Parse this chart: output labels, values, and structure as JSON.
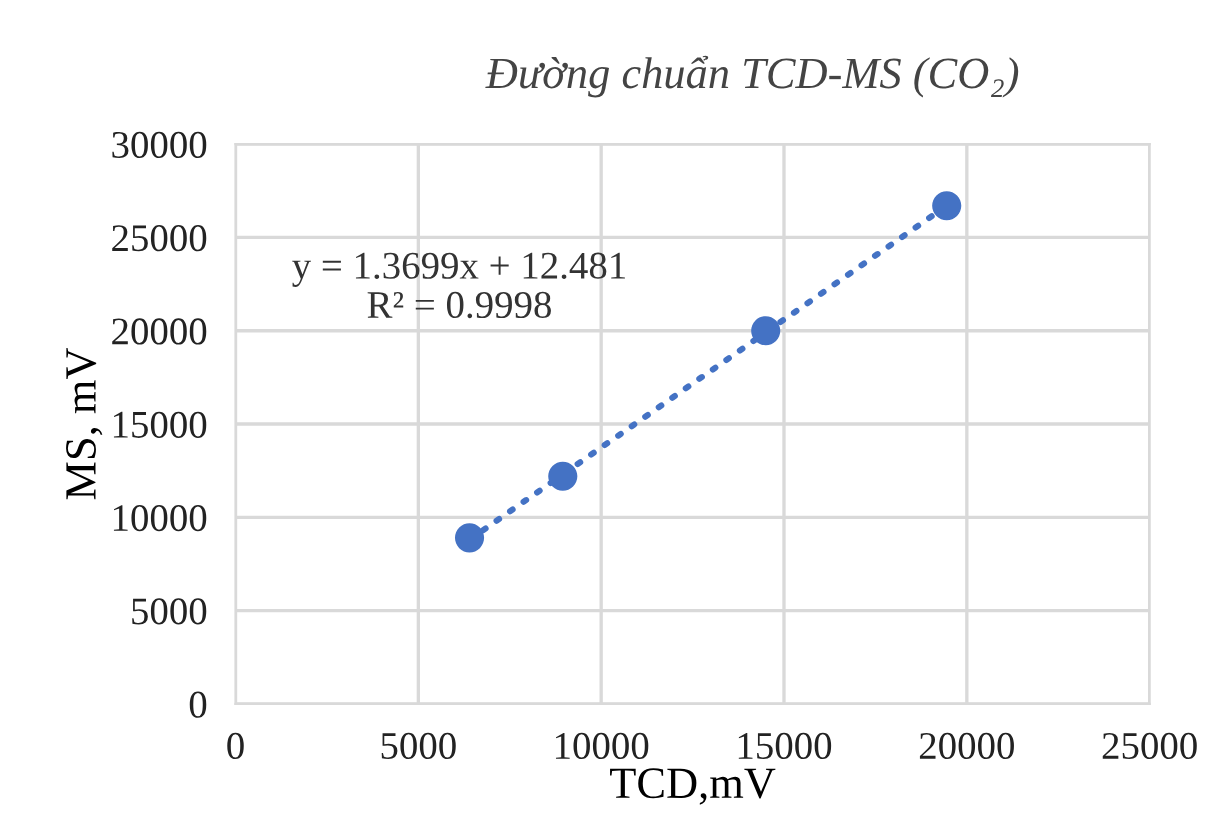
{
  "chart_data": {
    "type": "scatter",
    "title": "Đường chuẩn TCD-MS (CO₂)",
    "xlabel": "TCD,mV",
    "ylabel": "MS, mV",
    "x": [
      6400,
      8950,
      14500,
      19450
    ],
    "series": [
      {
        "color": "#4472c4",
        "marker": "circle",
        "values": [
          8900,
          12200,
          20000,
          26700
        ]
      },
      {
        "type": "line",
        "color": "#4472c4",
        "line_style": "dotted",
        "marker": "none",
        "x": [
          6400,
          19450
        ],
        "values": [
          8800,
          26700
        ]
      }
    ],
    "annotations": [
      "y = 1.3699x + 12.481",
      "R² = 0.9998"
    ],
    "xlim": [
      0,
      25000
    ],
    "xticks": [
      0,
      5000,
      10000,
      15000,
      20000,
      25000
    ],
    "ylim": [
      0,
      30000
    ],
    "yticks": [
      0,
      5000,
      10000,
      15000,
      20000,
      25000,
      30000
    ],
    "grid": true,
    "legend": false
  }
}
